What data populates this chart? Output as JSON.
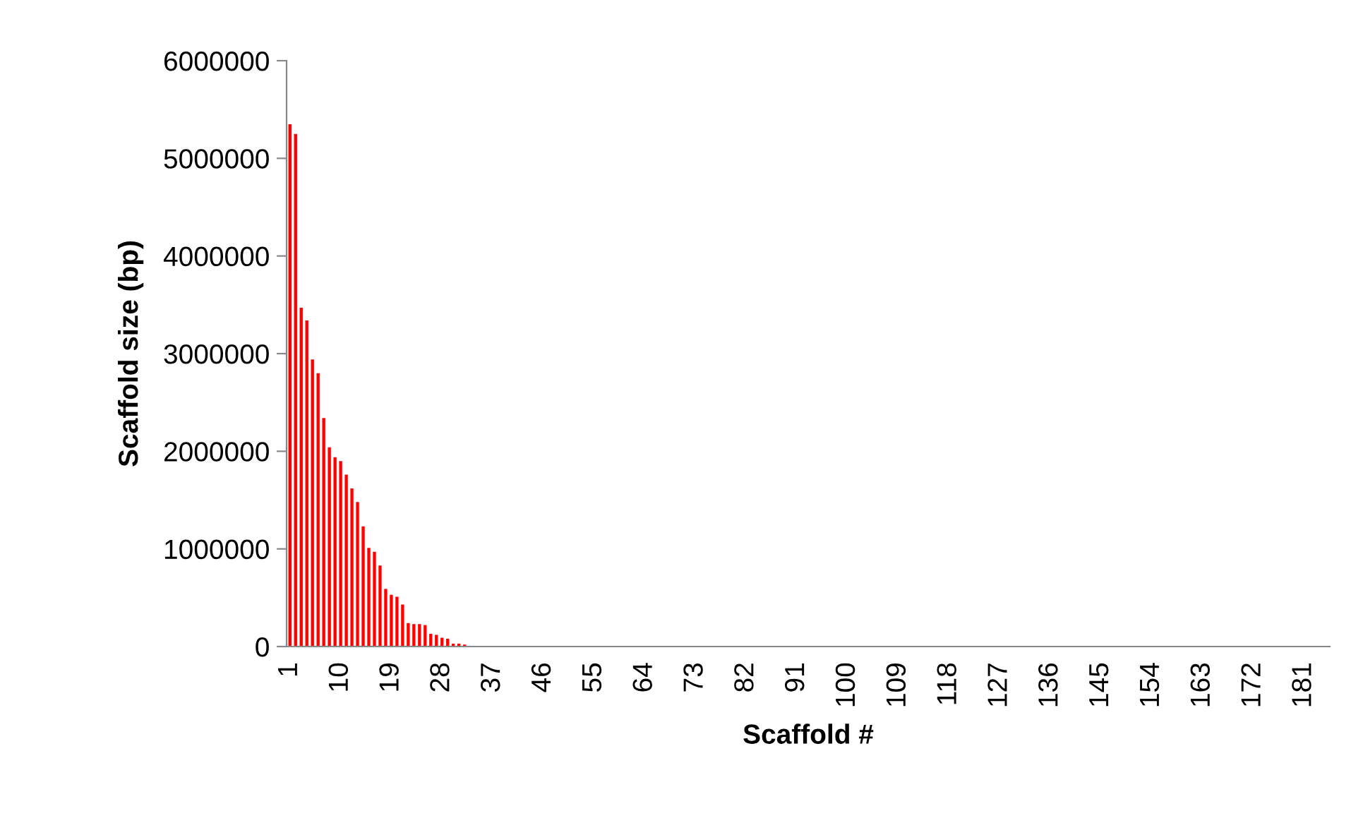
{
  "chart_data": {
    "type": "bar",
    "xlabel": "Scaffold #",
    "ylabel": "Scaffold size (bp)",
    "categories": [
      "1",
      null,
      null,
      null,
      null,
      null,
      null,
      null,
      null,
      "10",
      null,
      null,
      null,
      null,
      null,
      null,
      null,
      null,
      "19",
      null,
      null,
      null,
      null,
      null,
      null,
      null,
      null,
      "28",
      null,
      null,
      null,
      null,
      null,
      null,
      null,
      null,
      "37",
      null,
      null,
      null,
      null,
      null,
      null,
      null,
      null,
      "46",
      null,
      null,
      null,
      null,
      null,
      null,
      null,
      null,
      "55",
      null,
      null,
      null,
      null,
      null,
      null,
      null,
      null,
      "64",
      null,
      null,
      null,
      null,
      null,
      null,
      null,
      null,
      "73",
      null,
      null,
      null,
      null,
      null,
      null,
      null,
      null,
      "82",
      null,
      null,
      null,
      null,
      null,
      null,
      null,
      null,
      "91",
      null,
      null,
      null,
      null,
      null,
      null,
      null,
      null,
      "100",
      null,
      null,
      null,
      null,
      null,
      null,
      null,
      null,
      "109",
      null,
      null,
      null,
      null,
      null,
      null,
      null,
      null,
      "118",
      null,
      null,
      null,
      null,
      null,
      null,
      null,
      null,
      "127",
      null,
      null,
      null,
      null,
      null,
      null,
      null,
      null,
      "136",
      null,
      null,
      null,
      null,
      null,
      null,
      null,
      null,
      "145",
      null,
      null,
      null,
      null,
      null,
      null,
      null,
      null,
      "154",
      null,
      null,
      null,
      null,
      null,
      null,
      null,
      null,
      "163",
      null,
      null,
      null,
      null,
      null,
      null,
      null,
      null,
      "172",
      null,
      null,
      null,
      null,
      null,
      null,
      null,
      null,
      "181",
      null,
      null,
      null,
      null
    ],
    "values": [
      5350000,
      5250000,
      3470000,
      3340000,
      2940000,
      2800000,
      2340000,
      2040000,
      1940000,
      1900000,
      1760000,
      1620000,
      1480000,
      1230000,
      1010000,
      970000,
      830000,
      590000,
      530000,
      510000,
      430000,
      240000,
      230000,
      230000,
      220000,
      130000,
      120000,
      90000,
      80000,
      30000,
      30000,
      20000,
      0,
      0,
      0,
      0,
      0,
      0,
      0,
      0,
      0,
      0,
      0,
      0,
      0,
      0,
      0,
      0,
      0,
      0,
      0,
      0,
      0,
      0,
      0,
      0,
      0,
      0,
      0,
      0,
      0,
      0,
      0,
      0,
      0,
      0,
      0,
      0,
      0,
      0,
      0,
      0,
      0,
      0,
      0,
      0,
      0,
      0,
      0,
      0,
      0,
      0,
      0,
      0,
      0,
      0,
      0,
      0,
      0,
      0,
      0,
      0,
      0,
      0,
      0,
      0,
      0,
      0,
      0,
      0,
      0,
      0,
      0,
      0,
      0,
      0,
      0,
      0,
      0,
      0,
      0,
      0,
      0,
      0,
      0,
      0,
      0,
      0,
      0,
      0,
      0,
      0,
      0,
      0,
      0,
      0,
      0,
      0,
      0,
      0,
      0,
      0,
      0,
      0,
      0,
      0,
      0,
      0,
      0,
      0,
      0,
      0,
      0,
      0,
      0,
      0,
      0,
      0,
      0,
      0,
      0,
      0,
      0,
      0,
      0,
      0,
      0,
      0,
      0,
      0,
      0,
      0,
      0,
      0,
      0,
      0,
      0,
      0,
      0,
      0,
      0,
      0,
      0,
      0,
      0,
      0,
      0,
      0,
      0,
      0,
      0,
      0,
      0,
      0,
      0
    ],
    "color": "#ff0000",
    "ylim": [
      0,
      6000000
    ],
    "yticks": [
      0,
      1000000,
      2000000,
      3000000,
      4000000,
      5000000,
      6000000
    ],
    "grid": false,
    "legend": false
  }
}
